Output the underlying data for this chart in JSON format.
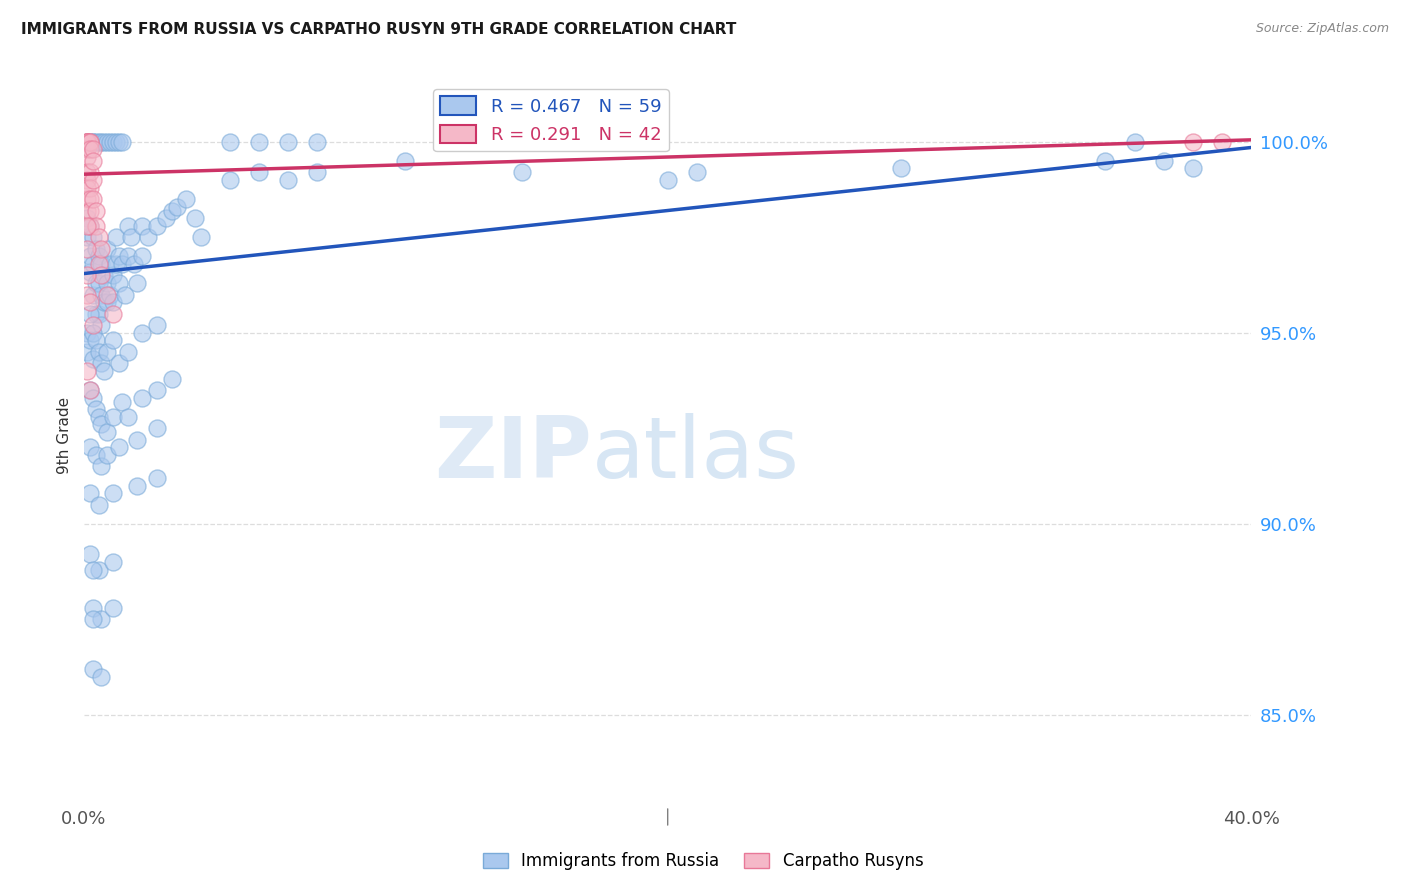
{
  "title": "IMMIGRANTS FROM RUSSIA VS CARPATHO RUSYN 9TH GRADE CORRELATION CHART",
  "source": "Source: ZipAtlas.com",
  "ylabel": "9th Grade",
  "y_tick_vals": [
    0.85,
    0.9,
    0.95,
    1.0
  ],
  "x_lim": [
    0.0,
    0.4
  ],
  "y_lim": [
    0.828,
    1.018
  ],
  "legend_blue_label": "R = 0.467   N = 59",
  "legend_pink_label": "R = 0.291   N = 42",
  "legend_label_russia": "Immigrants from Russia",
  "legend_label_rusyn": "Carpatho Rusyns",
  "blue_color": "#aac8ee",
  "pink_color": "#f5b8c8",
  "blue_edge": "#7aaad8",
  "pink_edge": "#e87898",
  "trendline_blue": "#2255bb",
  "trendline_pink": "#cc3366",
  "blue_scatter_x": [
    0.001,
    0.001,
    0.002,
    0.002,
    0.002,
    0.003,
    0.003,
    0.003,
    0.004,
    0.004,
    0.004,
    0.005,
    0.005,
    0.005,
    0.006,
    0.006,
    0.006,
    0.007,
    0.007,
    0.008,
    0.008,
    0.008,
    0.009,
    0.009,
    0.01,
    0.01,
    0.011,
    0.011,
    0.012,
    0.012,
    0.013,
    0.014,
    0.015,
    0.015,
    0.016,
    0.017,
    0.018,
    0.02,
    0.02,
    0.022,
    0.025,
    0.028,
    0.03,
    0.032,
    0.035,
    0.038,
    0.04,
    0.05,
    0.06,
    0.07,
    0.08,
    0.11,
    0.15,
    0.2,
    0.21,
    0.28,
    0.35,
    0.37,
    0.38
  ],
  "blue_scatter_y": [
    0.98,
    0.975,
    0.978,
    0.97,
    0.966,
    0.975,
    0.968,
    0.96,
    0.972,
    0.963,
    0.955,
    0.97,
    0.963,
    0.955,
    0.968,
    0.96,
    0.952,
    0.965,
    0.958,
    0.972,
    0.963,
    0.958,
    0.968,
    0.96,
    0.965,
    0.958,
    0.975,
    0.968,
    0.97,
    0.963,
    0.968,
    0.96,
    0.978,
    0.97,
    0.975,
    0.968,
    0.963,
    0.978,
    0.97,
    0.975,
    0.978,
    0.98,
    0.982,
    0.983,
    0.985,
    0.98,
    0.975,
    0.99,
    0.992,
    0.99,
    0.992,
    0.995,
    0.992,
    0.99,
    0.992,
    0.993,
    0.995,
    0.995,
    0.993
  ],
  "blue_scatter_x2": [
    0.001,
    0.001,
    0.002,
    0.002,
    0.003,
    0.003,
    0.004,
    0.005,
    0.006,
    0.007,
    0.008,
    0.01,
    0.012,
    0.015,
    0.02,
    0.025,
    0.002,
    0.003,
    0.004,
    0.005,
    0.006,
    0.008,
    0.01,
    0.013,
    0.015,
    0.02,
    0.025,
    0.03,
    0.002,
    0.004,
    0.006,
    0.008,
    0.012,
    0.018,
    0.025,
    0.002,
    0.005,
    0.01,
    0.018,
    0.025,
    0.002,
    0.005,
    0.01,
    0.003,
    0.006,
    0.01,
    0.003,
    0.006,
    0.003,
    0.003
  ],
  "blue_scatter_y2": [
    0.95,
    0.945,
    0.955,
    0.948,
    0.95,
    0.943,
    0.948,
    0.945,
    0.942,
    0.94,
    0.945,
    0.948,
    0.942,
    0.945,
    0.95,
    0.952,
    0.935,
    0.933,
    0.93,
    0.928,
    0.926,
    0.924,
    0.928,
    0.932,
    0.928,
    0.933,
    0.935,
    0.938,
    0.92,
    0.918,
    0.915,
    0.918,
    0.92,
    0.922,
    0.925,
    0.908,
    0.905,
    0.908,
    0.91,
    0.912,
    0.892,
    0.888,
    0.89,
    0.878,
    0.875,
    0.878,
    0.862,
    0.86,
    0.875,
    0.888
  ],
  "blue_extra_x": [
    0.001,
    0.002,
    0.003,
    0.003,
    0.004,
    0.005,
    0.006,
    0.007,
    0.008,
    0.009,
    0.01,
    0.011,
    0.012,
    0.013,
    0.05,
    0.06,
    0.07,
    0.08,
    0.36
  ],
  "blue_extra_y": [
    1.0,
    1.0,
    1.0,
    1.0,
    1.0,
    1.0,
    1.0,
    1.0,
    1.0,
    1.0,
    1.0,
    1.0,
    1.0,
    1.0,
    1.0,
    1.0,
    1.0,
    1.0,
    1.0
  ],
  "pink_scatter_x": [
    0.001,
    0.001,
    0.001,
    0.001,
    0.001,
    0.001,
    0.001,
    0.001,
    0.001,
    0.001,
    0.001,
    0.001,
    0.002,
    0.002,
    0.002,
    0.002,
    0.002,
    0.002,
    0.002,
    0.002,
    0.003,
    0.003,
    0.003,
    0.003,
    0.004,
    0.004,
    0.005,
    0.005,
    0.006,
    0.006,
    0.008,
    0.01,
    0.001,
    0.001,
    0.001,
    0.001,
    0.002,
    0.003,
    0.38,
    0.39,
    0.001,
    0.002
  ],
  "pink_scatter_y": [
    1.0,
    1.0,
    1.0,
    1.0,
    1.0,
    0.998,
    0.996,
    0.992,
    0.99,
    0.988,
    0.985,
    0.982,
    1.0,
    1.0,
    0.998,
    0.992,
    0.988,
    0.985,
    0.982,
    0.978,
    0.998,
    0.995,
    0.99,
    0.985,
    0.982,
    0.978,
    0.975,
    0.968,
    0.972,
    0.965,
    0.96,
    0.955,
    0.978,
    0.972,
    0.965,
    0.96,
    0.958,
    0.952,
    1.0,
    1.0,
    0.94,
    0.935
  ],
  "trendline_blue_pts": [
    [
      0.0,
      0.9655
    ],
    [
      0.4,
      0.9985
    ]
  ],
  "trendline_pink_pts": [
    [
      0.0,
      0.9915
    ],
    [
      0.4,
      1.0005
    ]
  ],
  "watermark_zip": "ZIP",
  "watermark_atlas": "atlas",
  "background_color": "#ffffff",
  "grid_color": "#dddddd"
}
